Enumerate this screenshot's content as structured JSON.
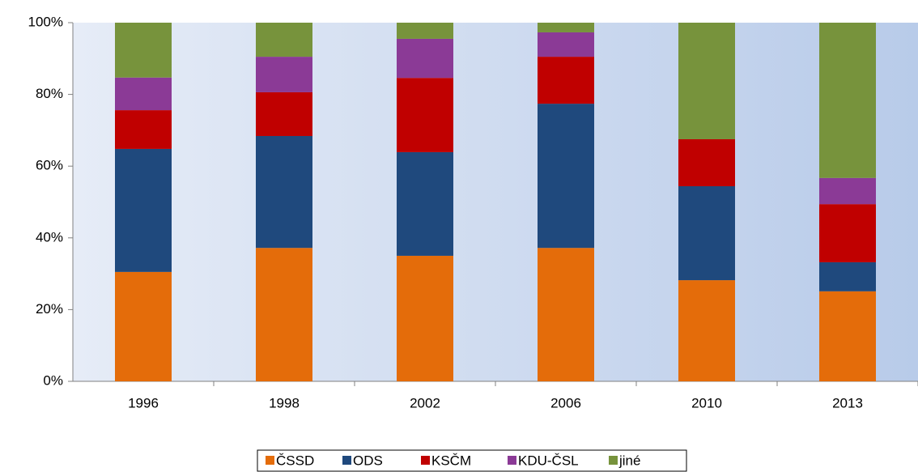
{
  "chart_data": {
    "type": "stacked_bar",
    "categories": [
      "1996",
      "1998",
      "2002",
      "2006",
      "2010",
      "2013"
    ],
    "series": [
      {
        "name": "ČSSD",
        "color": "#e46c0a",
        "values": [
          30.5,
          37.2,
          35.0,
          37.2,
          28.2,
          25.1
        ]
      },
      {
        "name": "ODS",
        "color": "#1f497d",
        "values": [
          34.3,
          31.2,
          28.9,
          40.2,
          26.2,
          8.1
        ]
      },
      {
        "name": "KSČM",
        "color": "#c00000",
        "values": [
          10.8,
          12.2,
          20.7,
          13.1,
          13.1,
          16.2
        ]
      },
      {
        "name": "KDU-ČSL",
        "color": "#8b3a96",
        "values": [
          9.1,
          9.9,
          10.9,
          6.8,
          0,
          7.3
        ]
      },
      {
        "name": "jiné",
        "color": "#77933c",
        "values": [
          15.3,
          9.5,
          4.5,
          2.7,
          32.5,
          43.3
        ]
      }
    ],
    "ylim": [
      0,
      100
    ],
    "yticks": [
      {
        "value": 0,
        "label": "0%"
      },
      {
        "value": 20,
        "label": "20%"
      },
      {
        "value": 40,
        "label": "40%"
      },
      {
        "value": 60,
        "label": "60%"
      },
      {
        "value": 80,
        "label": "80%"
      },
      {
        "value": 100,
        "label": "100%"
      }
    ],
    "legend": "bottom"
  }
}
